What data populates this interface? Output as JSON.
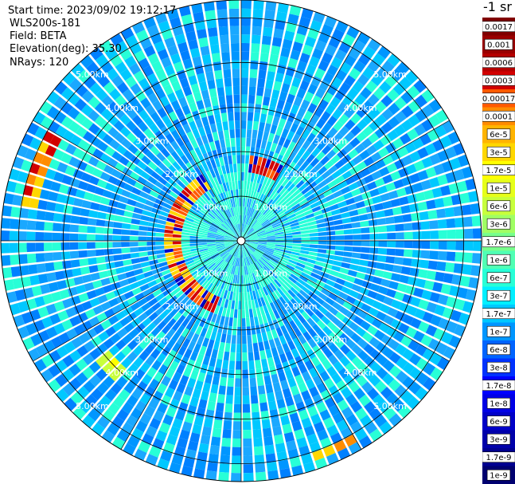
{
  "header": {
    "start_time": "Start time: 2023/09/02 19:12:17",
    "instrument": "WLS200s-181",
    "field": "Field: BETA",
    "elevation": "Elevation(deg): 35.30",
    "nrays": "NRays: 120"
  },
  "colorbar": {
    "title": "-1 sr",
    "labels": [
      "0.0017",
      "0.001",
      "0.0006",
      "0.0003",
      "0.00017",
      "0.0001",
      "6e-5",
      "3e-5",
      "1.7e-5",
      "1e-5",
      "6e-6",
      "3e-6",
      "1.7e-6",
      "1e-6",
      "6e-7",
      "3e-7",
      "1.7e-7",
      "1e-7",
      "6e-8",
      "3e-8",
      "1.7e-8",
      "1e-8",
      "6e-9",
      "3e-9",
      "1.7e-9",
      "1e-9"
    ],
    "colors": [
      "#800000",
      "#9a0000",
      "#b40000",
      "#d20000",
      "#ff5a00",
      "#ff8c00",
      "#ffb400",
      "#ffd700",
      "#ffff00",
      "#e6ff1a",
      "#c8ff3c",
      "#a0ff64",
      "#78ff8c",
      "#50ffb4",
      "#28ffd7",
      "#00f0ff",
      "#00c8ff",
      "#0096ff",
      "#0064ff",
      "#0032ff",
      "#0000ff",
      "#0000e6",
      "#0000c8",
      "#0000aa",
      "#000090",
      "#000070"
    ]
  },
  "chart_data": {
    "type": "heatmap",
    "projection": "polar-ppi",
    "field": "BETA",
    "elevation_deg": 35.3,
    "n_rays": 120,
    "range_rings_km": [
      1.0,
      2.0,
      3.0,
      4.0,
      5.0
    ],
    "ring_labels": [
      "1.00km",
      "2.00km",
      "3.00km",
      "4.00km",
      "5.00km"
    ],
    "max_range_km": 5.4,
    "spoke_angles_deg": [
      0,
      30,
      60,
      90,
      120,
      150,
      180,
      210,
      240,
      270,
      300,
      330
    ],
    "background_colors": [
      "#00c8ff",
      "#1aa8ff",
      "#0096ff",
      "#28ffd7",
      "#0080ff"
    ],
    "features": [
      {
        "name": "near-ring-echo",
        "range_km": [
          1.4,
          1.75
        ],
        "azimuth_deg": [
          200,
          330
        ],
        "colors": [
          "#ff5a00",
          "#d20000",
          "#ffd700",
          "#0000c8"
        ]
      },
      {
        "name": "north-echo",
        "range_km": [
          1.6,
          2.0
        ],
        "azimuth_deg": [
          5,
          30
        ],
        "colors": [
          "#d20000",
          "#ff5a00",
          "#0000c8"
        ]
      },
      {
        "name": "west-far-echo",
        "range_km": [
          4.6,
          5.0
        ],
        "azimuth_deg": [
          280,
          300
        ],
        "colors": [
          "#ff8c00",
          "#ffd700",
          "#d20000"
        ]
      },
      {
        "name": "south-far-echo",
        "range_km": [
          5.0,
          5.3
        ],
        "azimuth_deg": [
          150,
          162
        ],
        "colors": [
          "#ffd700",
          "#ff8c00"
        ]
      },
      {
        "name": "sw-far-echo",
        "range_km": [
          3.9,
          4.3
        ],
        "azimuth_deg": [
          222,
          230
        ],
        "colors": [
          "#ffff00",
          "#c8ff3c"
        ]
      }
    ]
  }
}
